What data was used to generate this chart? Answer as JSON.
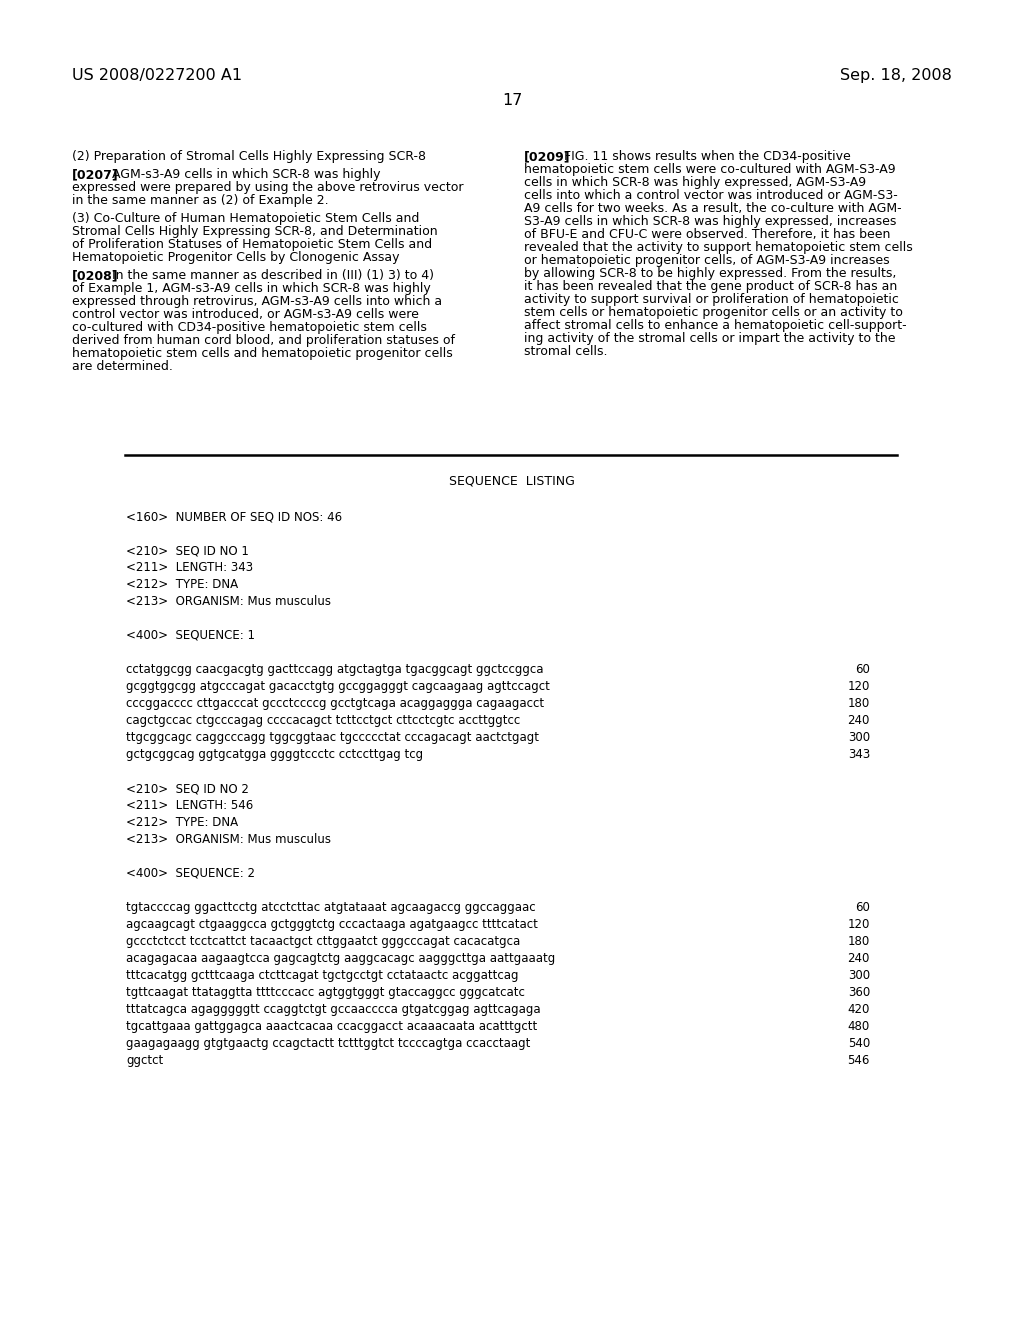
{
  "bg_color": "#ffffff",
  "header_left": "US 2008/0227200 A1",
  "header_right": "Sep. 18, 2008",
  "page_number": "17",
  "fig_width": 10.24,
  "fig_height": 13.2,
  "dpi": 100
}
